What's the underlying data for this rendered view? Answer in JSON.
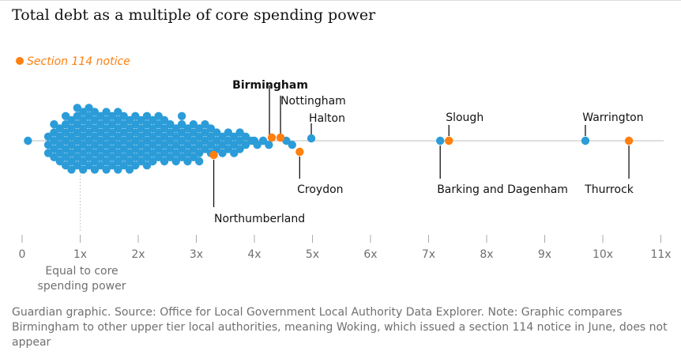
{
  "title": "Total debt as a multiple of core spending power",
  "legend": {
    "label": "Section 114 notice",
    "color": "#ff7f0f"
  },
  "source": "Guardian graphic. Source: Office for Local Government Local Authority Data Explorer. Note: Graphic compares Birmingham to other upper tier local authorities, meaning Woking, which issued a section 114 notice in June, does not appear",
  "colors": {
    "regular": "#2b9cd8",
    "notice": "#ff7f0f",
    "axis": "#999999",
    "line": "#d3d3d3"
  },
  "chart_data": {
    "type": "scatter",
    "subtype": "beeswarm",
    "xlim": [
      0,
      11
    ],
    "ticks": [
      {
        "value": 0,
        "label": "0"
      },
      {
        "value": 1,
        "label": "1x"
      },
      {
        "value": 2,
        "label": "2x"
      },
      {
        "value": 3,
        "label": "3x"
      },
      {
        "value": 4,
        "label": "4x"
      },
      {
        "value": 5,
        "label": "5x"
      },
      {
        "value": 6,
        "label": "6x"
      },
      {
        "value": 7,
        "label": "7x"
      },
      {
        "value": 8,
        "label": "8x"
      },
      {
        "value": 9,
        "label": "9x"
      },
      {
        "value": 10,
        "label": "10x"
      },
      {
        "value": 11,
        "label": "11x"
      }
    ],
    "reference": {
      "value": 1,
      "label_lines": [
        "Equal to core",
        "spending power"
      ]
    },
    "swarm_bins": [
      {
        "x": 0.1,
        "count": 1
      },
      {
        "x": 0.45,
        "count": 3
      },
      {
        "x": 0.55,
        "count": 5
      },
      {
        "x": 0.65,
        "count": 5
      },
      {
        "x": 0.75,
        "count": 7
      },
      {
        "x": 0.85,
        "count": 7
      },
      {
        "x": 0.95,
        "count": 8
      },
      {
        "x": 1.05,
        "count": 8
      },
      {
        "x": 1.15,
        "count": 8
      },
      {
        "x": 1.25,
        "count": 8
      },
      {
        "x": 1.35,
        "count": 7
      },
      {
        "x": 1.45,
        "count": 8
      },
      {
        "x": 1.55,
        "count": 7
      },
      {
        "x": 1.65,
        "count": 8
      },
      {
        "x": 1.75,
        "count": 7
      },
      {
        "x": 1.85,
        "count": 7
      },
      {
        "x": 1.95,
        "count": 7
      },
      {
        "x": 2.05,
        "count": 6
      },
      {
        "x": 2.15,
        "count": 7
      },
      {
        "x": 2.25,
        "count": 6
      },
      {
        "x": 2.35,
        "count": 6
      },
      {
        "x": 2.45,
        "count": 6
      },
      {
        "x": 2.55,
        "count": 5
      },
      {
        "x": 2.65,
        "count": 5
      },
      {
        "x": 2.75,
        "count": 6
      },
      {
        "x": 2.85,
        "count": 5
      },
      {
        "x": 2.95,
        "count": 5
      },
      {
        "x": 3.05,
        "count": 5
      },
      {
        "x": 3.15,
        "count": 4
      },
      {
        "x": 3.25,
        "count": 4
      },
      {
        "x": 3.35,
        "count": 3
      },
      {
        "x": 3.45,
        "count": 3
      },
      {
        "x": 3.55,
        "count": 3
      },
      {
        "x": 3.65,
        "count": 3
      },
      {
        "x": 3.75,
        "count": 3
      },
      {
        "x": 3.85,
        "count": 2
      },
      {
        "x": 3.95,
        "count": 1
      },
      {
        "x": 4.05,
        "count": 1
      },
      {
        "x": 4.15,
        "count": 1
      },
      {
        "x": 4.25,
        "count": 1
      },
      {
        "x": 4.55,
        "count": 1
      },
      {
        "x": 4.65,
        "count": 1
      }
    ],
    "named_points": [
      {
        "name": "Birmingham",
        "x": 4.3,
        "notice": true,
        "bold": true
      },
      {
        "name": "Nottingham",
        "x": 4.45,
        "notice": true
      },
      {
        "name": "Halton",
        "x": 4.98,
        "notice": false
      },
      {
        "name": "Croydon",
        "x": 4.78,
        "notice": true
      },
      {
        "name": "Northumberland",
        "x": 3.3,
        "notice": true
      },
      {
        "name": "Barking and Dagenham",
        "x": 7.2,
        "notice": false
      },
      {
        "name": "Slough",
        "x": 7.35,
        "notice": true
      },
      {
        "name": "Warrington",
        "x": 9.7,
        "notice": false
      },
      {
        "name": "Thurrock",
        "x": 10.45,
        "notice": true
      }
    ],
    "extra_points": [
      {
        "x": 4.0
      },
      {
        "x": 4.15
      }
    ]
  }
}
